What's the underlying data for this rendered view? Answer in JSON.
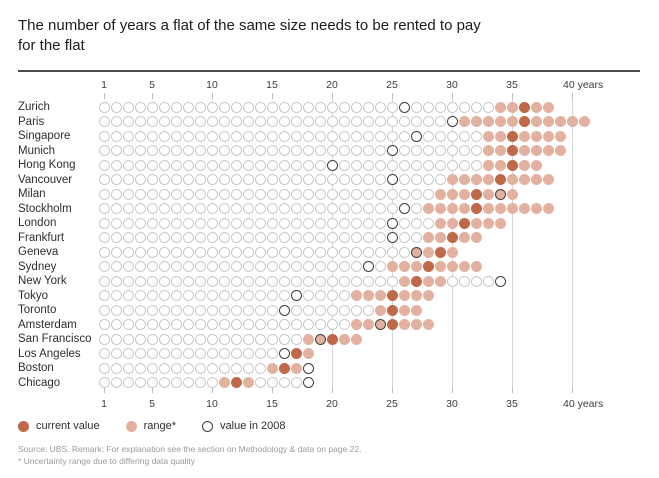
{
  "title": "The number of years a flat of the same size needs to be rented to pay for the flat",
  "axis": {
    "ticks": [
      1,
      5,
      10,
      15,
      20,
      25,
      30,
      35,
      40
    ],
    "last_tick_suffix": "years",
    "gridline_ticks": [
      20,
      25,
      30,
      35,
      40
    ],
    "min": 1,
    "max": 40
  },
  "legend": [
    {
      "marker": "current",
      "label": "current value"
    },
    {
      "marker": "range",
      "label": "range*"
    },
    {
      "marker": "ring",
      "label": "value in 2008"
    }
  ],
  "footer": {
    "source": "Source: UBS. Remark: For explanation see the section on Methodology & data on page 22.",
    "footnote": "* Uncertainty range due to differing data quality"
  },
  "colors": {
    "current": "#c0684a",
    "range": "#e3b1a0",
    "ring_stroke": "#433d38",
    "open_stroke": "#c9c9c9"
  },
  "chart_data": {
    "type": "scatter",
    "subtype": "dot-strip",
    "unit": "years",
    "xlim": [
      1,
      41
    ],
    "series_legend": [
      "current value",
      "range*",
      "value in 2008"
    ],
    "cities": [
      {
        "name": "Zurich",
        "range": [
          34,
          38
        ],
        "current": 36,
        "value_2008": 26
      },
      {
        "name": "Paris",
        "range": [
          31,
          41
        ],
        "current": 36,
        "value_2008": 30
      },
      {
        "name": "Singapore",
        "range": [
          33,
          39
        ],
        "current": 35,
        "value_2008": 27
      },
      {
        "name": "Munich",
        "range": [
          33,
          39
        ],
        "current": 35,
        "value_2008": 25
      },
      {
        "name": "Hong Kong",
        "range": [
          33,
          37
        ],
        "current": 35,
        "value_2008": 20
      },
      {
        "name": "Vancouver",
        "range": [
          30,
          38
        ],
        "current": 34,
        "value_2008": 25
      },
      {
        "name": "Milan",
        "range": [
          29,
          35
        ],
        "current": 32,
        "value_2008": 34
      },
      {
        "name": "Stockholm",
        "range": [
          28,
          38
        ],
        "current": 32,
        "value_2008": 26
      },
      {
        "name": "London",
        "range": [
          29,
          34
        ],
        "current": 31,
        "value_2008": 25
      },
      {
        "name": "Frankfurt",
        "range": [
          28,
          32
        ],
        "current": 30,
        "value_2008": 25
      },
      {
        "name": "Geneva",
        "range": [
          27,
          30
        ],
        "current": 29,
        "value_2008": 27
      },
      {
        "name": "Sydney",
        "range": [
          25,
          32
        ],
        "current": 28,
        "value_2008": 23
      },
      {
        "name": "New York",
        "range": [
          26,
          29
        ],
        "current": 27,
        "value_2008": 34
      },
      {
        "name": "Tokyo",
        "range": [
          22,
          28
        ],
        "current": 25,
        "value_2008": 17
      },
      {
        "name": "Toronto",
        "range": [
          24,
          27
        ],
        "current": 25,
        "value_2008": 16
      },
      {
        "name": "Amsterdam",
        "range": [
          22,
          28
        ],
        "current": 25,
        "value_2008": 24
      },
      {
        "name": "San Francisco",
        "range": [
          18,
          22
        ],
        "current": 20,
        "value_2008": 19
      },
      {
        "name": "Los Angeles",
        "range": [
          17,
          18
        ],
        "current": 17,
        "value_2008": 16
      },
      {
        "name": "Boston",
        "range": [
          15,
          17
        ],
        "current": 16,
        "value_2008": 18
      },
      {
        "name": "Chicago",
        "range": [
          11,
          13
        ],
        "current": 12,
        "value_2008": 18
      }
    ]
  }
}
